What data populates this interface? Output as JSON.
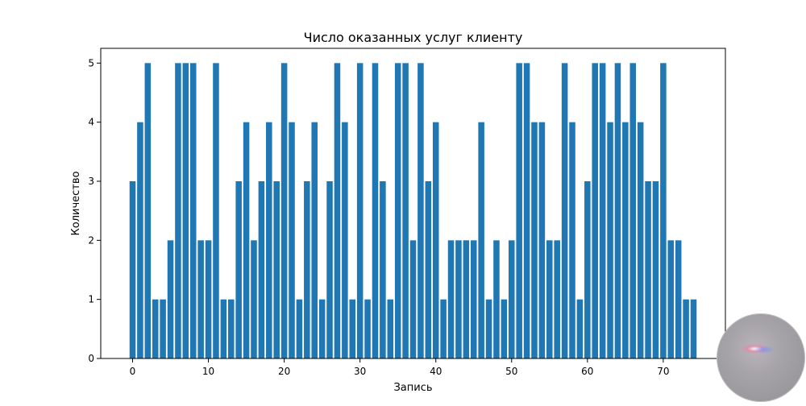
{
  "chart_data": {
    "type": "bar",
    "title": "Число оказанных услуг клиенту",
    "xlabel": "Запись",
    "ylabel": "Количество",
    "x": [
      0,
      1,
      2,
      3,
      4,
      5,
      6,
      7,
      8,
      9,
      10,
      11,
      12,
      13,
      14,
      15,
      16,
      17,
      18,
      19,
      20,
      21,
      22,
      23,
      24,
      25,
      26,
      27,
      28,
      29,
      30,
      31,
      32,
      33,
      34,
      35,
      36,
      37,
      38,
      39,
      40,
      41,
      42,
      43,
      44,
      45,
      46,
      47,
      48,
      49,
      50,
      51,
      52,
      53,
      54,
      55,
      56,
      57,
      58,
      59,
      60,
      61,
      62,
      63,
      64,
      65,
      66,
      67,
      68,
      69,
      70,
      71,
      72,
      73,
      74
    ],
    "values": [
      3,
      4,
      5,
      1,
      1,
      2,
      5,
      5,
      5,
      2,
      2,
      5,
      1,
      1,
      3,
      4,
      2,
      3,
      4,
      3,
      5,
      4,
      1,
      3,
      4,
      1,
      3,
      5,
      4,
      1,
      5,
      1,
      5,
      3,
      1,
      5,
      5,
      2,
      5,
      3,
      4,
      1,
      2,
      2,
      2,
      2,
      4,
      1,
      2,
      1,
      2,
      5,
      5,
      4,
      4,
      2,
      2,
      5,
      4,
      1,
      3,
      5,
      5,
      4,
      5,
      4,
      5,
      4,
      3,
      3,
      5,
      2,
      2,
      1,
      1
    ],
    "xticks": [
      0,
      10,
      20,
      30,
      40,
      50,
      60,
      70
    ],
    "yticks": [
      0,
      1,
      2,
      3,
      4,
      5
    ],
    "xlim": [
      -4.2,
      78.2
    ],
    "ylim": [
      0,
      5.25
    ],
    "grid": false,
    "colors": {
      "bar": "#1f77b4",
      "axis": "#000000",
      "background": "#ffffff"
    }
  },
  "overlay": {
    "icon": "lens-flare-circle-icon"
  }
}
